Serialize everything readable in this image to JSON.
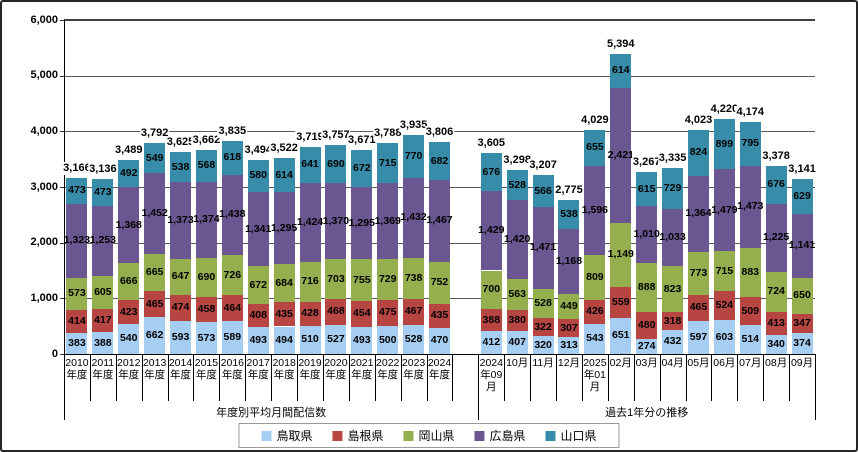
{
  "chart_data": {
    "type": "stacked-bar",
    "title": "",
    "grid": true,
    "legend_position": "bottom",
    "y_axis": {
      "min": 0,
      "max": 6000,
      "tick_step": 1000,
      "tick_labels": [
        "0",
        "1,000",
        "2,000",
        "3,000",
        "4,000",
        "5,000",
        "6,000"
      ]
    },
    "legend": [
      {
        "label": "鳥取県",
        "color": "#a6cef2"
      },
      {
        "label": "島根県",
        "color": "#b74643"
      },
      {
        "label": "岡山県",
        "color": "#95ae4e"
      },
      {
        "label": "広島県",
        "color": "#6a5690"
      },
      {
        "label": "山口県",
        "color": "#378da9"
      }
    ],
    "series_order_bottom_to_top": [
      "鳥取県",
      "島根県",
      "岡山県",
      "広島県",
      "山口県"
    ],
    "groups": [
      {
        "label": "年度別平均月間配信数",
        "bars": [
          {
            "category": "2010年度",
            "total": "3,166",
            "values": [
              "383",
              "414",
              "573",
              "1,323",
              "473"
            ]
          },
          {
            "category": "2011年度",
            "total": "3,136",
            "values": [
              "388",
              "417",
              "605",
              "1,253",
              "473"
            ]
          },
          {
            "category": "2012年度",
            "total": "3,489",
            "values": [
              "540",
              "423",
              "666",
              "1,368",
              "492"
            ]
          },
          {
            "category": "2013年度",
            "total": "3,792",
            "values": [
              "662",
              "465",
              "665",
              "1,452",
              "549"
            ]
          },
          {
            "category": "2014年度",
            "total": "3,625",
            "values": [
              "593",
              "474",
              "647",
              "1,373",
              "538"
            ]
          },
          {
            "category": "2015年度",
            "total": "3,662",
            "values": [
              "573",
              "458",
              "690",
              "1,374",
              "568"
            ]
          },
          {
            "category": "2016年度",
            "total": "3,835",
            "values": [
              "589",
              "464",
              "726",
              "1,438",
              "618"
            ]
          },
          {
            "category": "2017年度",
            "total": "3,494",
            "values": [
              "493",
              "408",
              "672",
              "1,341",
              "580"
            ]
          },
          {
            "category": "2018年度",
            "total": "3,522",
            "values": [
              "494",
              "435",
              "684",
              "1,295",
              "614"
            ]
          },
          {
            "category": "2019年度",
            "total": "3,719",
            "values": [
              "510",
              "428",
              "716",
              "1,424",
              "641"
            ]
          },
          {
            "category": "2020年度",
            "total": "3,757",
            "values": [
              "527",
              "468",
              "703",
              "1,370",
              "690"
            ]
          },
          {
            "category": "2021年度",
            "total": "3,671",
            "values": [
              "493",
              "454",
              "755",
              "1,295",
              "672"
            ]
          },
          {
            "category": "2022年度",
            "total": "3,788",
            "values": [
              "500",
              "475",
              "729",
              "1,369",
              "715"
            ]
          },
          {
            "category": "2023年度",
            "total": "3,935",
            "values": [
              "528",
              "467",
              "738",
              "1,432",
              "770"
            ]
          },
          {
            "category": "2024年度",
            "total": "3,806",
            "values": [
              "470",
              "435",
              "752",
              "1,467",
              "682"
            ]
          }
        ]
      },
      {
        "label": "過去1年分の推移",
        "bars": [
          {
            "category": "2024年09月",
            "total": "3,605",
            "values": [
              "412",
              "388",
              "700",
              "1,429",
              "676"
            ]
          },
          {
            "category": "10月",
            "total": "3,298",
            "values": [
              "407",
              "380",
              "563",
              "1,420",
              "528"
            ]
          },
          {
            "category": "11月",
            "total": "3,207",
            "values": [
              "320",
              "322",
              "528",
              "1,471",
              "566"
            ]
          },
          {
            "category": "12月",
            "total": "2,775",
            "values": [
              "313",
              "307",
              "449",
              "1,168",
              "538"
            ]
          },
          {
            "category": "2025年01月",
            "total": "4,029",
            "values": [
              "543",
              "426",
              "809",
              "1,596",
              "655"
            ]
          },
          {
            "category": "02月",
            "total": "5,394",
            "values": [
              "651",
              "559",
              "1,149",
              "2,421",
              "614"
            ]
          },
          {
            "category": "03月",
            "total": "3,267",
            "values": [
              "274",
              "480",
              "888",
              "1,010",
              "615"
            ]
          },
          {
            "category": "04月",
            "total": "3,335",
            "values": [
              "432",
              "318",
              "823",
              "1,033",
              "729"
            ]
          },
          {
            "category": "05月",
            "total": "4,023",
            "values": [
              "597",
              "465",
              "773",
              "1,364",
              "824"
            ]
          },
          {
            "category": "06月",
            "total": "4,220",
            "values": [
              "603",
              "524",
              "715",
              "1,479",
              "899"
            ]
          },
          {
            "category": "07月",
            "total": "4,174",
            "values": [
              "514",
              "509",
              "883",
              "1,473",
              "795"
            ]
          },
          {
            "category": "08月",
            "total": "3,378",
            "values": [
              "340",
              "413",
              "724",
              "1,225",
              "676"
            ]
          },
          {
            "category": "09月",
            "total": "3,141",
            "values": [
              "374",
              "347",
              "650",
              "1,141",
              "629"
            ]
          }
        ]
      }
    ]
  }
}
